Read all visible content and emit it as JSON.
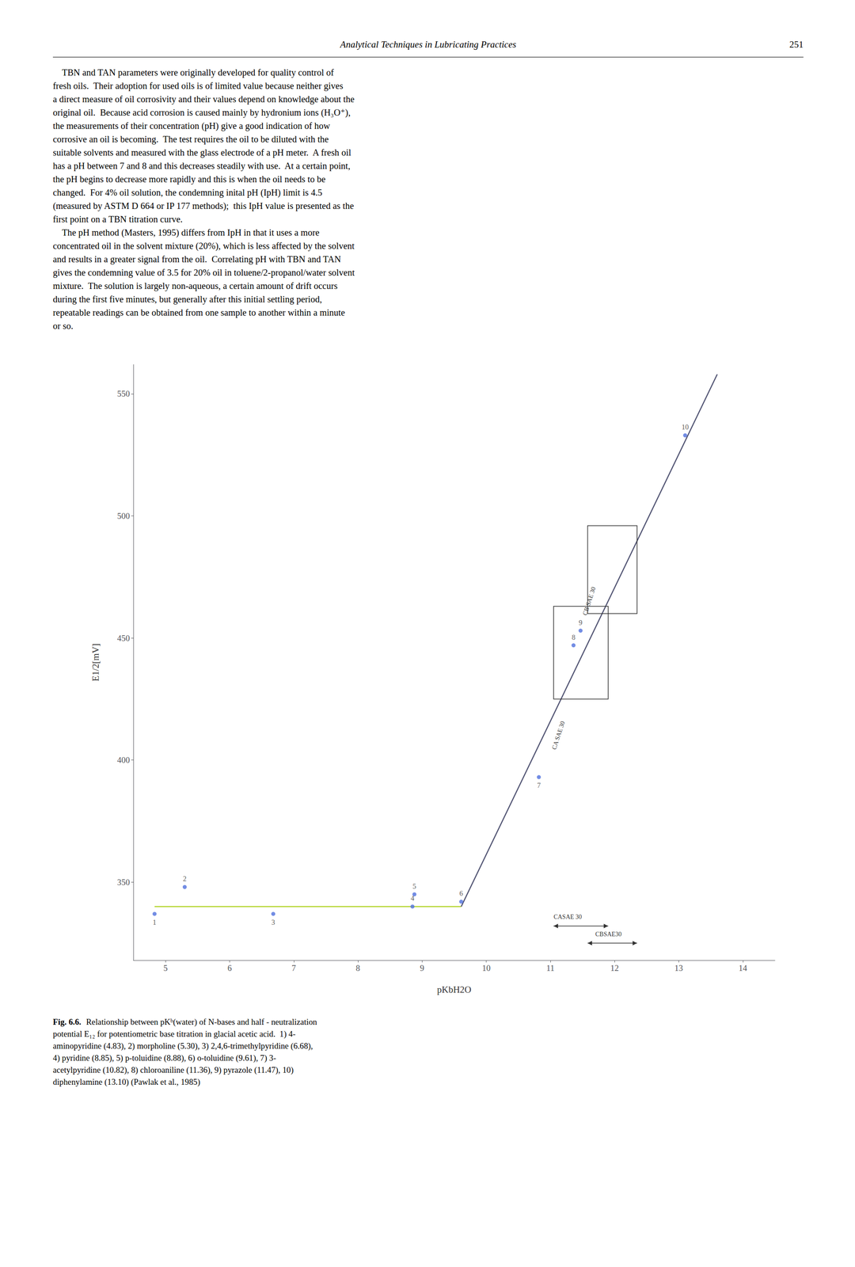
{
  "header": "Analytical Techniques in Lubricating Practices",
  "page_number": "251",
  "body_paragraphs": [
    [
      "    TBN and TAN parameters were originally developed for quality control of",
      "fresh oils.  Their adoption for used oils is of limited value because neither gives",
      "a direct measure of oil corrosivity and their values depend on knowledge about the",
      "original oil.  Because acid corrosion is caused mainly by hydronium ions (H₃O⁺),",
      "the measurements of their concentration (pH) give a good indication of how",
      "corrosive an oil is becoming.  The test requires the oil to be diluted with the",
      "suitable solvents and measured with the glass electrode of a pH meter.  A fresh oil",
      "has a pH between 7 and 8 and this decreases steadily with use.  At a certain point,",
      "the pH begins to decrease more rapidly and this is when the oil needs to be",
      "changed.  For 4% oil solution, the condemning inital pH (IpH) limit is 4.5",
      "(measured by ASTM D 664 or IP 177 methods);  this IpH value is presented as the",
      "first point on a TBN titration curve."
    ],
    [
      "    The pH method (Masters, 1995) differs from IpH in that it uses a more",
      "concentrated oil in the solvent mixture (20%), which is less affected by the solvent",
      "and results in a greater signal from the oil.  Correlating pH with TBN and TAN",
      "gives the condemning value of 3.5 for 20% oil in toluene/2-propanol/water solvent",
      "mixture.  The solution is largely non-aqueous, a certain amount of drift occurs",
      "during the first five minutes, but generally after this initial settling period,",
      "repeatable readings can be obtained from one sample to another within a minute",
      "or so."
    ]
  ],
  "caption_label": "Fig. 6.6.",
  "caption_lines": [
    "Relationship between pKᵇ(water) of N-bases and half - neutralization",
    "potential E₁₂ for potentiometric base titration in glacial acetic acid.  1) 4-",
    "aminopyridine (4.83), 2) morpholine (5.30), 3) 2,4,6-trimethylpyridine (6.68),",
    "4) pyridine (8.85), 5) p-toluidine (8.88), 6) o-toluidine (9.61), 7) 3-",
    "acetylpyridine (10.82), 8) chloroaniline (11.36), 9) pyrazole (11.47), 10)",
    "diphenylamine (13.10) (Pawlak et al., 1985)"
  ],
  "chart_data": {
    "type": "scatter",
    "xlabel": "pKbH2O",
    "ylabel": "E1/2[mV]",
    "xlim": [
      4.5,
      14.5
    ],
    "ylim": [
      318,
      562
    ],
    "xticks": [
      5,
      6,
      7,
      8,
      9,
      10,
      11,
      12,
      13,
      14
    ],
    "yticks": [
      350,
      400,
      450,
      500,
      550
    ],
    "grid": false,
    "series": [
      {
        "type": "scatter",
        "x": [
          4.83,
          5.3,
          6.68,
          8.85,
          8.88,
          9.61,
          10.82,
          11.36,
          11.47,
          13.1
        ],
        "values": [
          337,
          348,
          337,
          340,
          345,
          342,
          393,
          447,
          453,
          533
        ],
        "labels": [
          "1",
          "2",
          "3",
          "4",
          "5",
          "6",
          "7",
          "8",
          "9",
          "10"
        ]
      },
      {
        "type": "line",
        "x": [
          4.83,
          9.61
        ],
        "values": [
          340,
          340
        ]
      },
      {
        "type": "line",
        "x": [
          9.61,
          13.6
        ],
        "values": [
          340,
          558
        ]
      }
    ],
    "boxes": [
      {
        "x": [
          11.05,
          11.9
        ],
        "y": [
          425,
          463
        ],
        "label": "CA SAE 30",
        "label_at": [
          11.1,
          404
        ]
      },
      {
        "x": [
          11.58,
          12.35
        ],
        "y": [
          460,
          496
        ],
        "label": "CB SAE 30",
        "label_at": [
          11.58,
          459
        ]
      }
    ],
    "arrows": [
      {
        "x": [
          11.05,
          11.9
        ],
        "y": 332,
        "label": "CASAE 30",
        "label_at": [
          11.05,
          337
        ]
      },
      {
        "x": [
          11.58,
          12.35
        ],
        "y": 325,
        "label": "CBSAE30",
        "label_at": [
          11.7,
          330
        ]
      }
    ]
  }
}
